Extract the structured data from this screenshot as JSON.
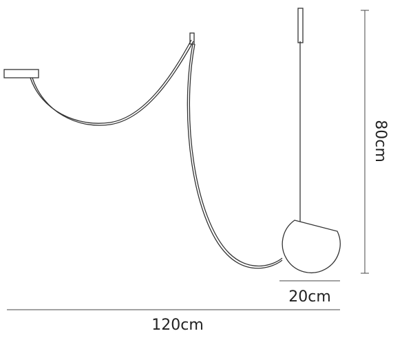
{
  "dimensions": {
    "height": "80cm",
    "shade_width": "20cm",
    "total_width": "120cm"
  }
}
